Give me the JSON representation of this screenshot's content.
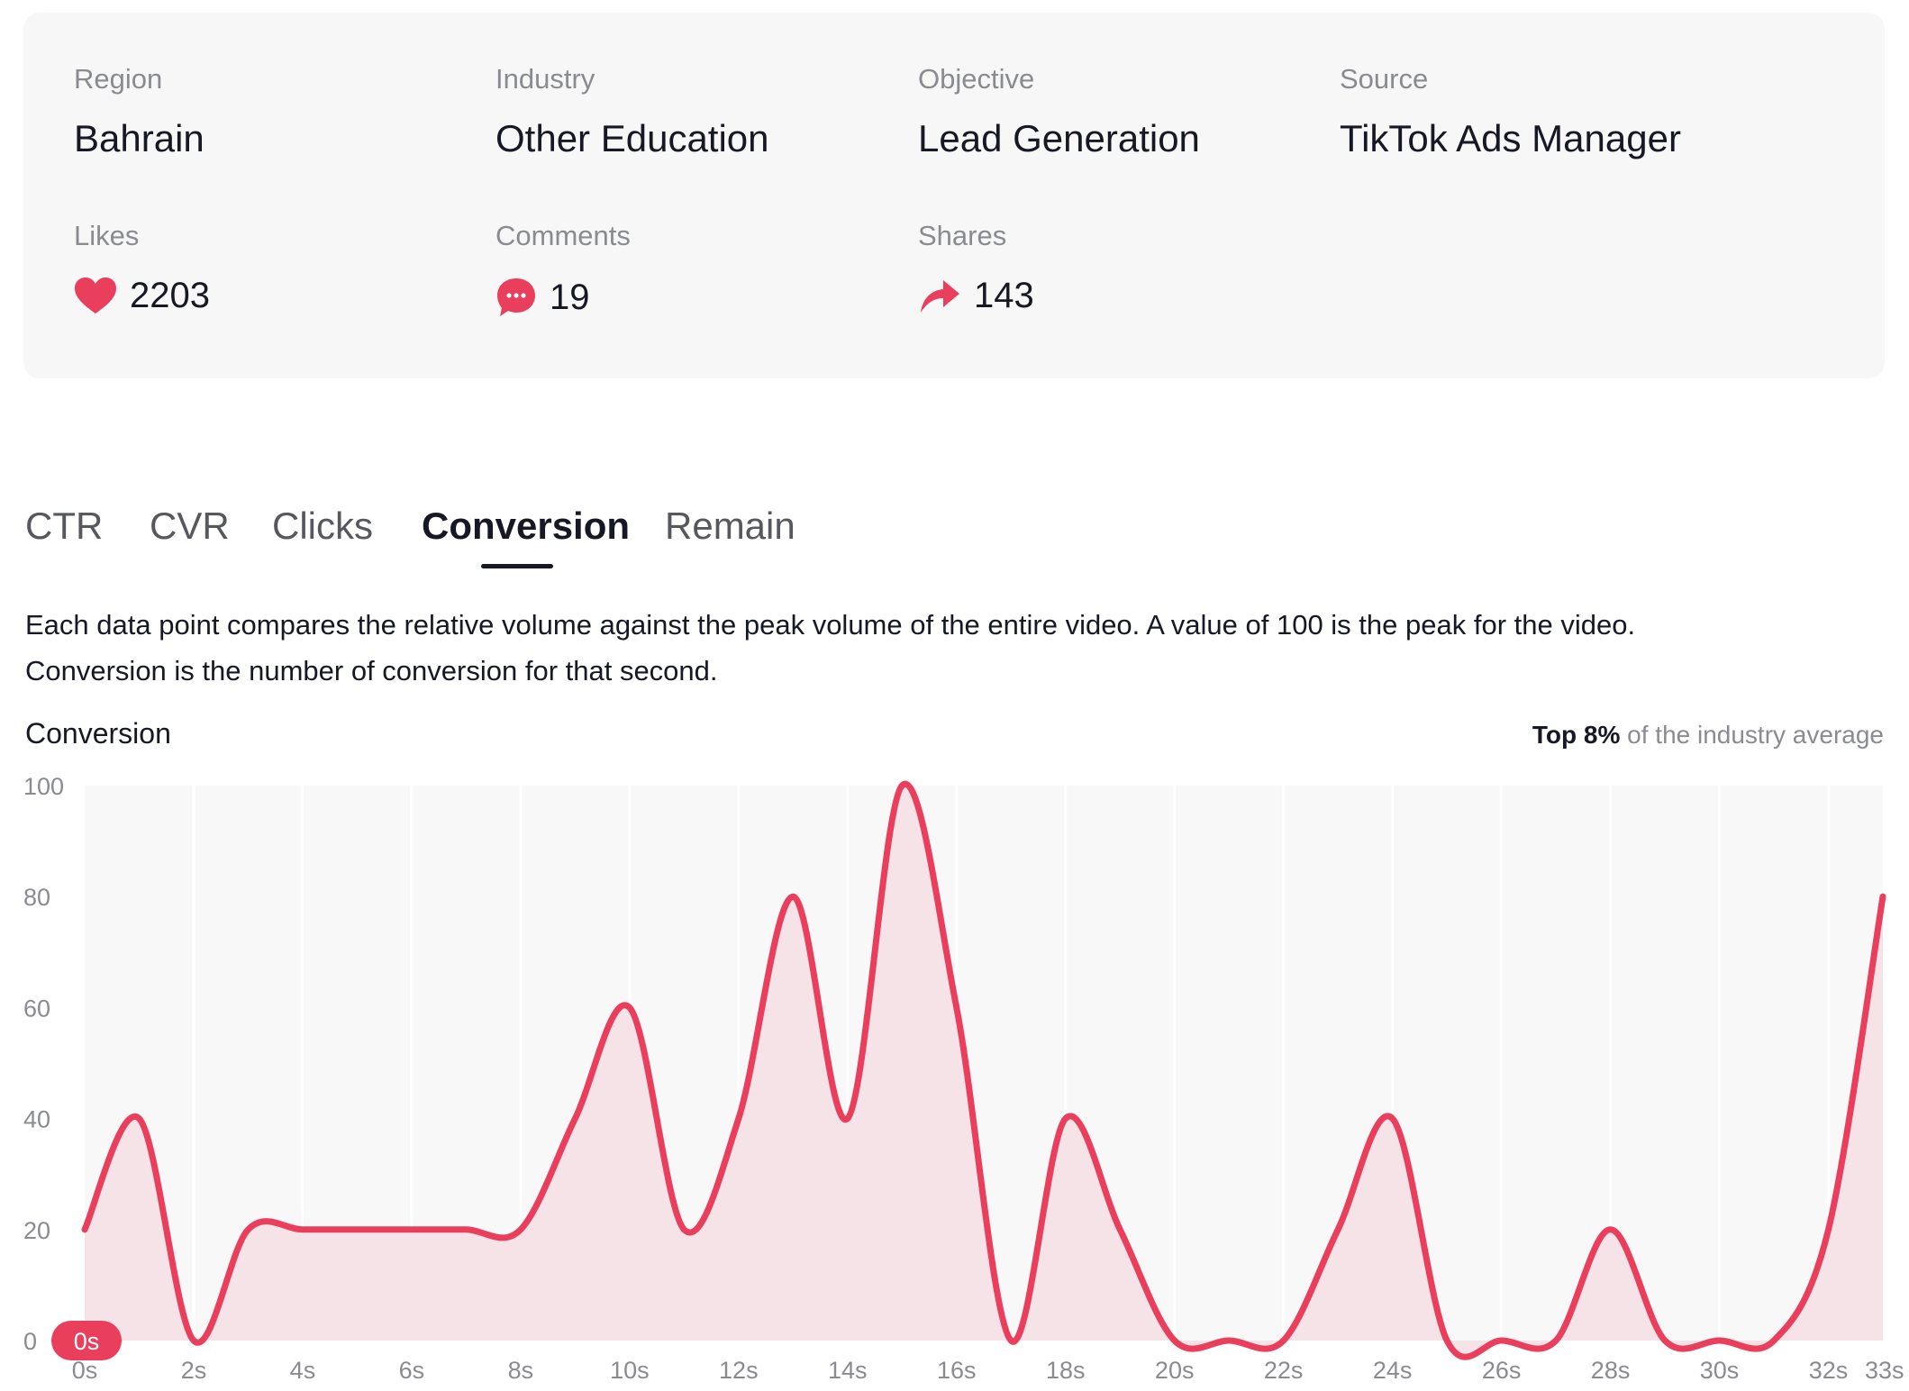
{
  "info": {
    "region": {
      "label": "Region",
      "value": "Bahrain"
    },
    "industry": {
      "label": "Industry",
      "value": "Other Education"
    },
    "objective": {
      "label": "Objective",
      "value": "Lead Generation"
    },
    "source": {
      "label": "Source",
      "value": "TikTok Ads Manager"
    },
    "likes": {
      "label": "Likes",
      "value": "2203",
      "icon": "heart-icon"
    },
    "comments": {
      "label": "Comments",
      "value": "19",
      "icon": "comment-bubble-icon"
    },
    "shares": {
      "label": "Shares",
      "value": "143",
      "icon": "share-arrow-icon"
    }
  },
  "tabs": [
    {
      "label": "CTR",
      "active": false
    },
    {
      "label": "CVR",
      "active": false
    },
    {
      "label": "Clicks",
      "active": false
    },
    {
      "label": "Conversion",
      "active": true
    },
    {
      "label": "Remain",
      "active": false
    }
  ],
  "description": {
    "line1": "Each data point compares the relative volume against the peak volume of the entire video. A value of 100 is the peak for the video.",
    "line2": "Conversion is the number of conversion for that second."
  },
  "benchmark": {
    "prefix": "Top",
    "value": "8%",
    "suffix": "of the industry average"
  },
  "colors": {
    "accent": "#ea3e5d",
    "area_fill": "#f6e3e7",
    "plot_bg": "#f8f8f8"
  },
  "chart_data": {
    "type": "area",
    "title": "Conversion",
    "xlabel": "",
    "ylabel": "",
    "ylim": [
      0,
      100
    ],
    "y_ticks": [
      "100",
      "80",
      "60",
      "40",
      "20",
      "0"
    ],
    "x_ticks": [
      "0s",
      "2s",
      "4s",
      "6s",
      "8s",
      "10s",
      "12s",
      "14s",
      "16s",
      "18s",
      "20s",
      "22s",
      "24s",
      "26s",
      "28s",
      "30s",
      "32s",
      "33s"
    ],
    "x": [
      0,
      1,
      2,
      3,
      4,
      5,
      6,
      7,
      8,
      9,
      10,
      11,
      12,
      13,
      14,
      15,
      16,
      17,
      18,
      19,
      20,
      21,
      22,
      23,
      24,
      25,
      26,
      27,
      28,
      29,
      30,
      31,
      32,
      33
    ],
    "values": [
      20,
      40,
      0,
      20,
      20,
      20,
      20,
      20,
      20,
      40,
      60,
      20,
      40,
      80,
      40,
      100,
      60,
      0,
      40,
      20,
      0,
      0,
      0,
      20,
      40,
      0,
      0,
      0,
      20,
      0,
      0,
      0,
      20,
      80
    ],
    "cursor_label": "0s",
    "grid": true
  }
}
